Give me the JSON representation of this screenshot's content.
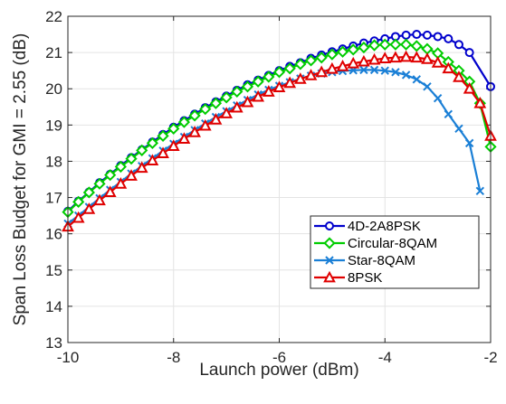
{
  "chart_data": {
    "type": "line",
    "xlabel": "Launch power (dBm)",
    "ylabel": "Span Loss Budget for GMI = 2.55 (dB)",
    "xlim": [
      -10,
      -2
    ],
    "ylim": [
      13,
      22
    ],
    "xticks": [
      -10,
      -8,
      -6,
      -4,
      -2
    ],
    "yticks": [
      13,
      14,
      15,
      16,
      17,
      18,
      19,
      20,
      21,
      22
    ],
    "grid": true,
    "legend": "bottom-right",
    "series": [
      {
        "name": "4D-2A8PSK",
        "color": "#0000cc",
        "marker": "circle",
        "x": [
          -10,
          -9.8,
          -9.6,
          -9.4,
          -9.2,
          -9,
          -8.8,
          -8.6,
          -8.4,
          -8.2,
          -8,
          -7.8,
          -7.6,
          -7.4,
          -7.2,
          -7,
          -6.8,
          -6.6,
          -6.4,
          -6.2,
          -6,
          -5.8,
          -5.6,
          -5.4,
          -5.2,
          -5,
          -4.8,
          -4.6,
          -4.4,
          -4.2,
          -4,
          -3.8,
          -3.6,
          -3.4,
          -3.2,
          -3,
          -2.8,
          -2.6,
          -2.4,
          -2
        ],
        "y": [
          16.62,
          16.9,
          17.15,
          17.41,
          17.64,
          17.88,
          18.1,
          18.32,
          18.53,
          18.74,
          18.94,
          19.12,
          19.3,
          19.48,
          19.64,
          19.8,
          19.96,
          20.11,
          20.24,
          20.37,
          20.5,
          20.62,
          20.72,
          20.84,
          20.93,
          21.02,
          21.1,
          21.18,
          21.26,
          21.32,
          21.38,
          21.44,
          21.48,
          21.5,
          21.48,
          21.44,
          21.38,
          21.22,
          21.0,
          20.06
        ]
      },
      {
        "name": "Circular-8QAM",
        "color": "#00cc00",
        "marker": "diamond",
        "x": [
          -10,
          -9.8,
          -9.6,
          -9.4,
          -9.2,
          -9,
          -8.8,
          -8.6,
          -8.4,
          -8.2,
          -8,
          -7.8,
          -7.6,
          -7.4,
          -7.2,
          -7,
          -6.8,
          -6.6,
          -6.4,
          -6.2,
          -6,
          -5.8,
          -5.6,
          -5.4,
          -5.2,
          -5,
          -4.8,
          -4.6,
          -4.4,
          -4.2,
          -4,
          -3.8,
          -3.6,
          -3.4,
          -3.2,
          -3,
          -2.8,
          -2.6,
          -2.4,
          -2.2,
          -2
        ],
        "y": [
          16.6,
          16.88,
          17.14,
          17.38,
          17.62,
          17.85,
          18.07,
          18.3,
          18.5,
          18.7,
          18.9,
          19.08,
          19.26,
          19.44,
          19.6,
          19.76,
          19.92,
          20.06,
          20.2,
          20.33,
          20.46,
          20.56,
          20.68,
          20.78,
          20.86,
          20.95,
          21.02,
          21.08,
          21.14,
          21.2,
          21.22,
          21.22,
          21.22,
          21.18,
          21.1,
          20.98,
          20.74,
          20.5,
          20.2,
          19.6,
          18.4
        ]
      },
      {
        "name": "Star-8QAM",
        "color": "#1a7fd6",
        "marker": "x",
        "x": [
          -10,
          -9.8,
          -9.6,
          -9.4,
          -9.2,
          -9,
          -8.8,
          -8.6,
          -8.4,
          -8.2,
          -8,
          -7.8,
          -7.6,
          -7.4,
          -7.2,
          -7,
          -6.8,
          -6.6,
          -6.4,
          -6.2,
          -6,
          -5.8,
          -5.6,
          -5.4,
          -5.2,
          -5,
          -4.8,
          -4.6,
          -4.4,
          -4.2,
          -4,
          -3.8,
          -3.6,
          -3.4,
          -3.2,
          -3,
          -2.8,
          -2.6,
          -2.4,
          -2.2
        ],
        "y": [
          16.28,
          16.5,
          16.74,
          16.98,
          17.21,
          17.43,
          17.66,
          17.87,
          18.08,
          18.29,
          18.48,
          18.67,
          18.86,
          19.04,
          19.22,
          19.38,
          19.54,
          19.69,
          19.84,
          19.97,
          20.08,
          20.18,
          20.28,
          20.36,
          20.42,
          20.46,
          20.49,
          20.51,
          20.52,
          20.52,
          20.5,
          20.46,
          20.38,
          20.26,
          20.06,
          19.74,
          19.3,
          18.9,
          18.5,
          17.18
        ]
      },
      {
        "name": "8PSK",
        "color": "#e00000",
        "marker": "triangle",
        "x": [
          -10,
          -9.8,
          -9.6,
          -9.4,
          -9.2,
          -9,
          -8.8,
          -8.6,
          -8.4,
          -8.2,
          -8,
          -7.8,
          -7.6,
          -7.4,
          -7.2,
          -7,
          -6.8,
          -6.6,
          -6.4,
          -6.2,
          -6,
          -5.8,
          -5.6,
          -5.4,
          -5.2,
          -5,
          -4.8,
          -4.6,
          -4.4,
          -4.2,
          -4,
          -3.8,
          -3.6,
          -3.4,
          -3.2,
          -3,
          -2.8,
          -2.6,
          -2.4,
          -2.2,
          -2
        ],
        "y": [
          16.2,
          16.44,
          16.68,
          16.92,
          17.15,
          17.38,
          17.6,
          17.82,
          18.02,
          18.22,
          18.42,
          18.62,
          18.8,
          18.98,
          19.15,
          19.32,
          19.48,
          19.63,
          19.78,
          19.92,
          20.04,
          20.16,
          20.27,
          20.37,
          20.46,
          20.55,
          20.62,
          20.7,
          20.75,
          20.8,
          20.84,
          20.86,
          20.88,
          20.86,
          20.82,
          20.72,
          20.56,
          20.32,
          20.0,
          19.6,
          18.7
        ]
      }
    ]
  }
}
